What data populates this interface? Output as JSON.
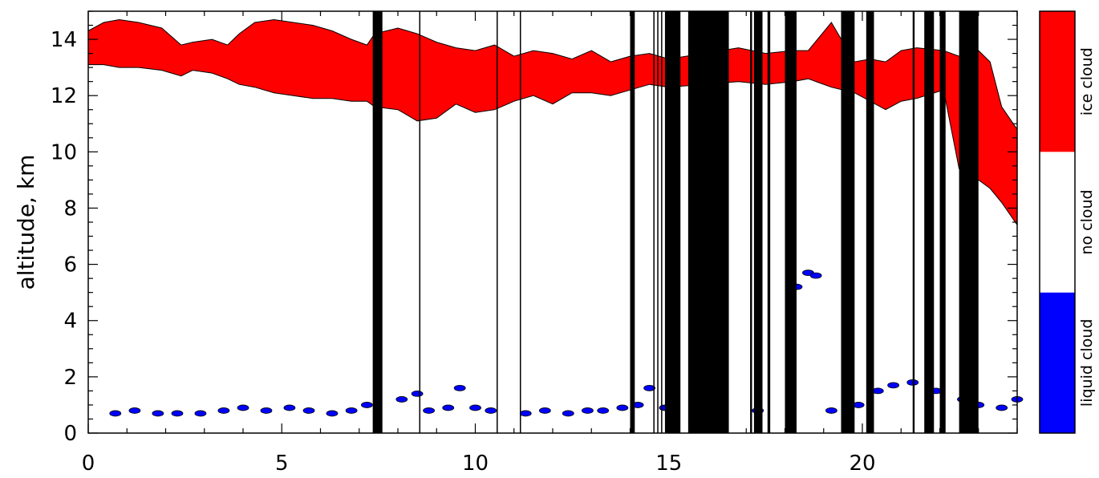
{
  "chart_data": {
    "type": "area",
    "title": "",
    "xlabel": "",
    "ylabel": "altitude, km",
    "xlim": [
      0,
      24
    ],
    "ylim": [
      0,
      15
    ],
    "x_ticks": [
      0,
      5,
      10,
      15,
      20
    ],
    "y_ticks": [
      0,
      2,
      4,
      6,
      8,
      10,
      12,
      14
    ],
    "colors": {
      "ice": "#ff0000",
      "liquid": "#0000ff",
      "no_data": "#000000",
      "none": "#ffffff"
    },
    "colorbar": [
      {
        "name": "liquid cloud",
        "color": "#0000ff"
      },
      {
        "name": "no cloud",
        "color": "#ffffff"
      },
      {
        "name": "ice cloud",
        "color": "#ff0000"
      }
    ],
    "ice_cloud": {
      "x": [
        0,
        0.4,
        0.8,
        1.3,
        1.9,
        2.4,
        2.7,
        3.2,
        3.6,
        3.9,
        4.3,
        4.8,
        5.3,
        5.8,
        6.3,
        6.8,
        7.2,
        7.4,
        8.0,
        8.5,
        9.0,
        9.5,
        10.0,
        10.5,
        11.0,
        11.5,
        12.0,
        12.5,
        13.0,
        13.5,
        14.0,
        14.5,
        15.0,
        16.8,
        17.5,
        18.2,
        18.6,
        19.2,
        19.8,
        20.2,
        20.6,
        21.0,
        21.4,
        22.1,
        22.5,
        23.0,
        23.3,
        23.6,
        24.0
      ],
      "top": [
        14.3,
        14.6,
        14.7,
        14.6,
        14.4,
        13.8,
        13.9,
        14.0,
        13.8,
        14.2,
        14.6,
        14.7,
        14.6,
        14.5,
        14.3,
        14.0,
        13.8,
        14.2,
        14.4,
        14.2,
        13.9,
        13.7,
        13.6,
        13.8,
        13.4,
        13.6,
        13.5,
        13.3,
        13.6,
        13.2,
        13.4,
        13.5,
        13.3,
        13.7,
        13.5,
        13.6,
        13.6,
        14.6,
        13.2,
        13.3,
        13.2,
        13.6,
        13.7,
        13.6,
        13.4,
        13.6,
        13.2,
        11.6,
        10.8
      ],
      "base": [
        13.1,
        13.1,
        13.0,
        13.0,
        12.9,
        12.7,
        12.9,
        12.8,
        12.6,
        12.4,
        12.3,
        12.1,
        12.0,
        11.9,
        11.9,
        11.8,
        11.8,
        11.6,
        11.5,
        11.1,
        11.2,
        11.7,
        11.4,
        11.5,
        11.8,
        12.0,
        11.7,
        12.1,
        12.1,
        12.0,
        12.2,
        12.4,
        12.3,
        12.5,
        12.4,
        12.5,
        12.6,
        12.3,
        12.1,
        11.8,
        11.5,
        11.8,
        11.9,
        12.2,
        9.4,
        9.0,
        8.7,
        8.2,
        7.4
      ]
    },
    "liquid_cloud": {
      "x": [
        0.7,
        1.2,
        1.8,
        2.3,
        2.9,
        3.5,
        4.0,
        4.6,
        5.2,
        5.7,
        6.3,
        6.8,
        7.2,
        8.1,
        8.5,
        8.8,
        9.3,
        9.6,
        10.0,
        10.4,
        11.3,
        11.8,
        12.4,
        12.9,
        13.3,
        13.8,
        14.2,
        14.5,
        14.9,
        17.3,
        18.3,
        18.6,
        18.8,
        19.2,
        19.9,
        20.4,
        20.8,
        21.3,
        21.9,
        22.6,
        23.0,
        23.6,
        24.0
      ],
      "y": [
        0.7,
        0.8,
        0.7,
        0.7,
        0.7,
        0.8,
        0.9,
        0.8,
        0.9,
        0.8,
        0.7,
        0.8,
        1.0,
        1.2,
        1.4,
        0.8,
        0.9,
        1.6,
        0.9,
        0.8,
        0.7,
        0.8,
        0.7,
        0.8,
        0.8,
        0.9,
        1.0,
        1.6,
        0.9,
        0.8,
        5.2,
        5.7,
        5.6,
        0.8,
        1.0,
        1.5,
        1.7,
        1.8,
        1.5,
        1.2,
        1.0,
        0.9,
        1.2
      ]
    },
    "no_data_intervals": [
      [
        7.35,
        7.6
      ],
      [
        8.55,
        8.57
      ],
      [
        10.55,
        10.57
      ],
      [
        11.15,
        11.17
      ],
      [
        14.0,
        14.12
      ],
      [
        14.6,
        14.62
      ],
      [
        14.7,
        14.72
      ],
      [
        14.8,
        14.82
      ],
      [
        14.9,
        15.3
      ],
      [
        15.5,
        16.55
      ],
      [
        17.1,
        17.15
      ],
      [
        17.2,
        17.42
      ],
      [
        17.55,
        17.62
      ],
      [
        18.0,
        18.3
      ],
      [
        19.45,
        19.8
      ],
      [
        20.1,
        20.3
      ],
      [
        21.3,
        21.35
      ],
      [
        21.6,
        21.85
      ],
      [
        22.0,
        22.15
      ],
      [
        22.5,
        23.0
      ]
    ]
  }
}
